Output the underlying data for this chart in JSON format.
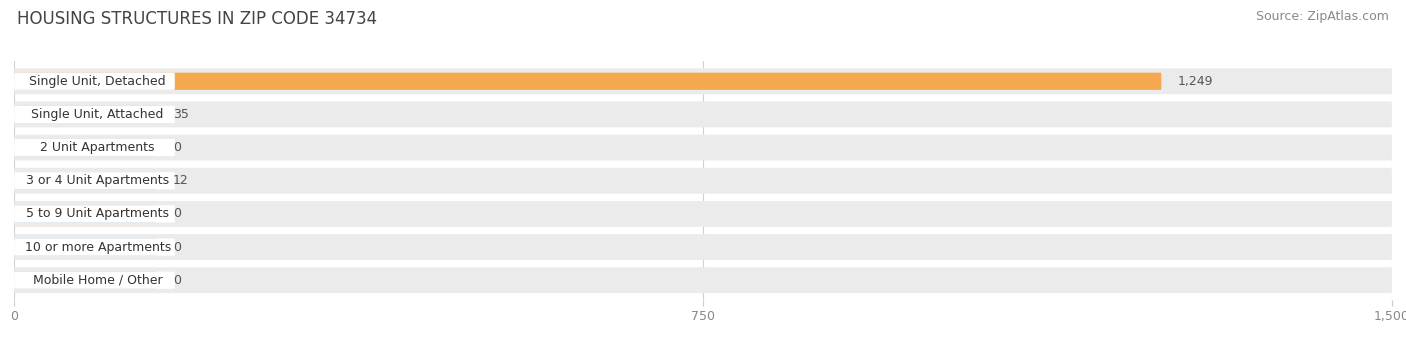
{
  "title": "HOUSING STRUCTURES IN ZIP CODE 34734",
  "source": "Source: ZipAtlas.com",
  "categories": [
    "Single Unit, Detached",
    "Single Unit, Attached",
    "2 Unit Apartments",
    "3 or 4 Unit Apartments",
    "5 to 9 Unit Apartments",
    "10 or more Apartments",
    "Mobile Home / Other"
  ],
  "values": [
    1249,
    35,
    0,
    12,
    0,
    0,
    0
  ],
  "bar_colors": [
    "#f5a94e",
    "#f4a0a0",
    "#a8c4e0",
    "#a8c4e0",
    "#a8c4e0",
    "#a8c4e0",
    "#c8aed4"
  ],
  "row_bg_color": "#ebebeb",
  "label_bg_color": "#ffffff",
  "bar_bg_stub_color": "#d8d8d8",
  "grid_color": "#d0d0d0",
  "xlim": [
    0,
    1500
  ],
  "xticks": [
    0,
    750,
    1500
  ],
  "title_fontsize": 12,
  "source_fontsize": 9,
  "label_fontsize": 9,
  "value_fontsize": 9,
  "background_color": "#ffffff",
  "value_label_color": "#555555",
  "title_color": "#444444",
  "source_color": "#888888"
}
